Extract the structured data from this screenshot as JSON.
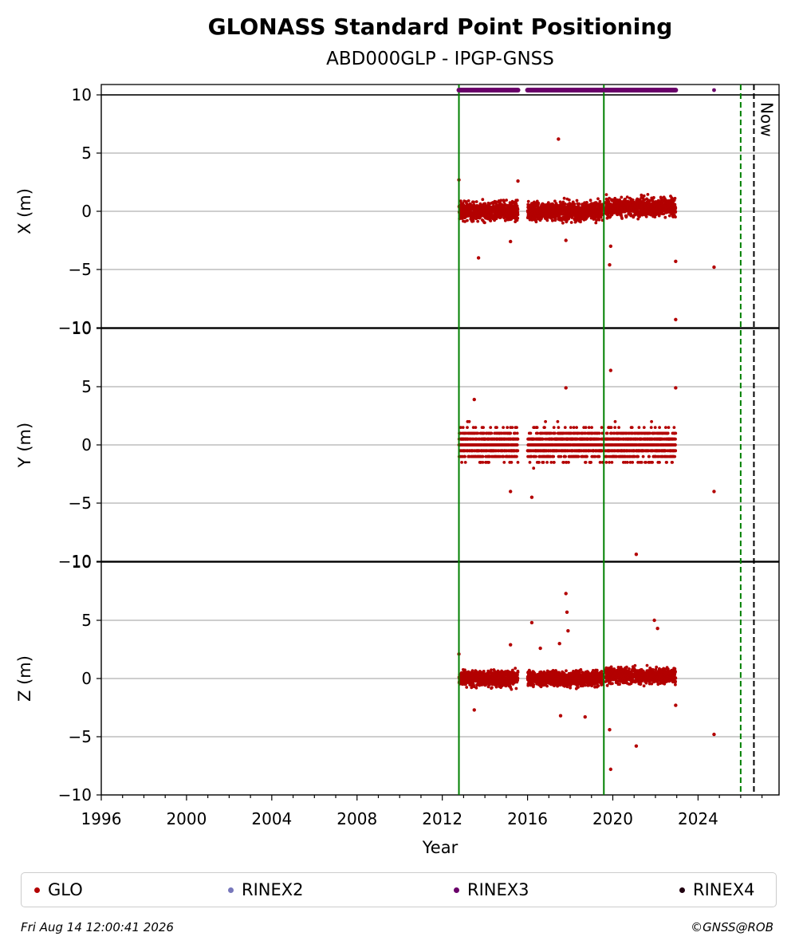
{
  "chart_data": {
    "type": "scatter",
    "title": "GLONASS Standard Point Positioning",
    "subtitle": "ABD000GLP - IPGP-GNSS",
    "xlabel": "Year",
    "xlim": [
      1996,
      2027.8
    ],
    "x_ticks": [
      "1996",
      "2000",
      "2004",
      "2008",
      "2012",
      "2016",
      "2020",
      "2024"
    ],
    "now_label": "Now",
    "now_year": 2026.62,
    "panels": [
      {
        "ylabel": "X (m)",
        "ylim": [
          -10,
          10
        ],
        "y_ticks": [
          "10",
          "5",
          "0",
          "−5",
          "−10"
        ],
        "spread": 1.0,
        "offset_late": 0.35,
        "outliers": [
          [
            2012.78,
            2.7
          ],
          [
            2013.7,
            -4.0
          ],
          [
            2015.2,
            -2.6
          ],
          [
            2015.55,
            2.6
          ],
          [
            2017.45,
            6.2
          ],
          [
            2017.8,
            -2.5
          ],
          [
            2019.85,
            -4.6
          ],
          [
            2019.9,
            -3.0
          ],
          [
            2022.95,
            -4.3
          ],
          [
            2022.95,
            -9.3
          ],
          [
            2024.75,
            -4.8
          ]
        ]
      },
      {
        "ylabel": "Y (m)",
        "ylim": [
          -10,
          10
        ],
        "y_ticks": [
          "10",
          "5",
          "0",
          "−5",
          "−10"
        ],
        "spread": 1.7,
        "offset_late": 0.0,
        "outliers": [
          [
            2013.5,
            3.9
          ],
          [
            2015.2,
            -4.0
          ],
          [
            2016.2,
            -4.5
          ],
          [
            2017.8,
            4.9
          ],
          [
            2019.9,
            6.4
          ],
          [
            2021.1,
            -9.4
          ],
          [
            2022.95,
            4.9
          ],
          [
            2024.75,
            -4.0
          ]
        ]
      },
      {
        "ylabel": "Z (m)",
        "ylim": [
          -10,
          10
        ],
        "y_ticks": [
          "10",
          "5",
          "0",
          "−5",
          "−10"
        ],
        "spread": 0.85,
        "offset_late": 0.25,
        "outliers": [
          [
            2012.78,
            2.1
          ],
          [
            2013.5,
            -2.7
          ],
          [
            2015.2,
            2.9
          ],
          [
            2016.2,
            4.8
          ],
          [
            2016.6,
            2.6
          ],
          [
            2017.5,
            3.0
          ],
          [
            2017.55,
            -3.2
          ],
          [
            2017.8,
            7.3
          ],
          [
            2017.85,
            5.7
          ],
          [
            2017.9,
            4.1
          ],
          [
            2018.7,
            -3.3
          ],
          [
            2019.85,
            -4.4
          ],
          [
            2019.9,
            -7.8
          ],
          [
            2021.1,
            -5.8
          ],
          [
            2021.95,
            5.0
          ],
          [
            2022.1,
            4.3
          ],
          [
            2022.95,
            -2.3
          ],
          [
            2024.75,
            -4.8
          ]
        ]
      }
    ],
    "glo_segments": [
      [
        2012.78,
        2015.55
      ],
      [
        2016.0,
        2019.52
      ],
      [
        2019.65,
        2022.95
      ]
    ],
    "rinex3_segments": [
      [
        2012.78,
        2015.55
      ],
      [
        2016.0,
        2019.52
      ],
      [
        2019.65,
        2022.95
      ]
    ],
    "rinex3_points": [
      2024.75
    ],
    "vertical_lines": [
      {
        "year": 2012.78,
        "style": "solid",
        "color": "#008000"
      },
      {
        "year": 2019.58,
        "style": "solid",
        "color": "#008000"
      },
      {
        "year": 2026.0,
        "style": "dashed",
        "color": "#008000"
      },
      {
        "year": 2026.62,
        "style": "dashed",
        "color": "#000000"
      }
    ],
    "colors": {
      "GLO": "#b30000",
      "RINEX2": "#7777bb",
      "RINEX3": "#6a006a",
      "RINEX4": "#200010",
      "grid": "#b0b0b0"
    }
  },
  "legend": [
    {
      "label": "GLO",
      "color": "#b30000"
    },
    {
      "label": "RINEX2",
      "color": "#7777bb"
    },
    {
      "label": "RINEX3",
      "color": "#6a006a"
    },
    {
      "label": "RINEX4",
      "color": "#200010"
    }
  ],
  "footer": {
    "timestamp": "Fri Aug 14 12:00:41 2026",
    "credit": "©GNSS@ROB"
  }
}
